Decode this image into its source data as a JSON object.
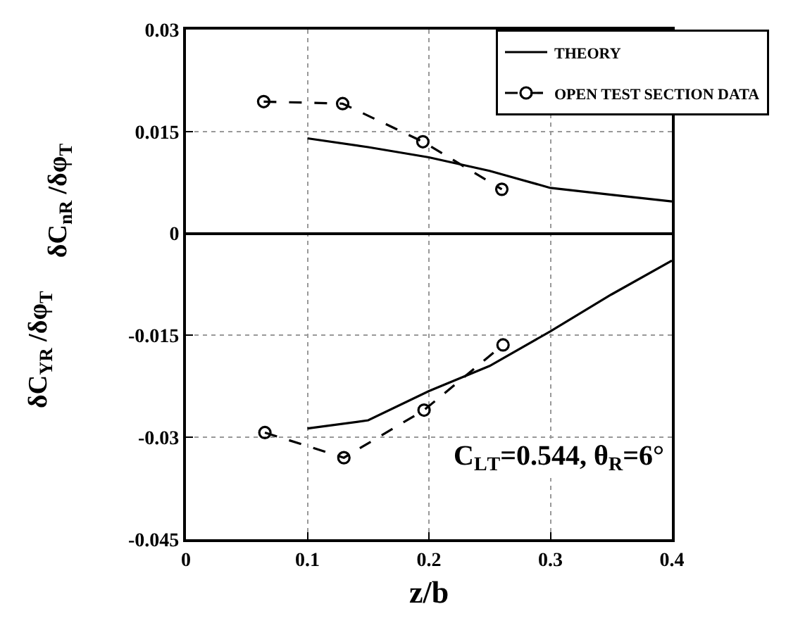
{
  "chart_data": {
    "type": "line",
    "xlabel": "z/b",
    "ylabel": "δC$_{n}$$_{R}$ /δφ$_{T}$",
    "xlim": [
      0,
      0.4
    ],
    "xticks": [
      0,
      0.1,
      0.2,
      0.3,
      0.4
    ],
    "ylim": [
      -0.045,
      0.03
    ],
    "yticks": [
      -0.045,
      -0.03,
      -0.015,
      0,
      0.015,
      0.03
    ],
    "grid": true,
    "legend": "top right",
    "series": [
      {
        "name": "THEORY",
        "color": "#000000",
        "line_style": "solid",
        "marker": "none",
        "x": [
          0.1,
          0.15,
          0.2,
          0.25,
          0.3,
          0.35,
          0.4
        ],
        "values": [
          0.014,
          0.0127,
          0.0112,
          0.0092,
          0.0067,
          0.0057,
          0.0047
        ]
      },
      {
        "name": "OPEN TEST SECTION DATA",
        "color": "#000000",
        "line_style": "dashed",
        "marker": "circle",
        "x": [
          0.064,
          0.129,
          0.195,
          0.26
        ],
        "values": [
          0.0194,
          0.0191,
          0.0135,
          0.0065
        ]
      },
      {
        "color": "#000000",
        "line_style": "solid",
        "marker": "none",
        "x": [
          0.1,
          0.15,
          0.2,
          0.25,
          0.3,
          0.35,
          0.4
        ],
        "values": [
          -0.0287,
          -0.0275,
          -0.0232,
          -0.0195,
          -0.0144,
          -0.009,
          -0.004
        ]
      },
      {
        "color": "#000000",
        "line_style": "dashed",
        "marker": "circle",
        "x": [
          0.065,
          0.13,
          0.196,
          0.261
        ],
        "values": [
          -0.0293,
          -0.033,
          -0.026,
          -0.0164
        ]
      }
    ],
    "annotations": [
      "δC$_{Y}$$_{R}$ /δφ$_{T}$",
      "C$_{L}$$_{T}$=0.544, θ$_{R}$=6°"
    ]
  }
}
